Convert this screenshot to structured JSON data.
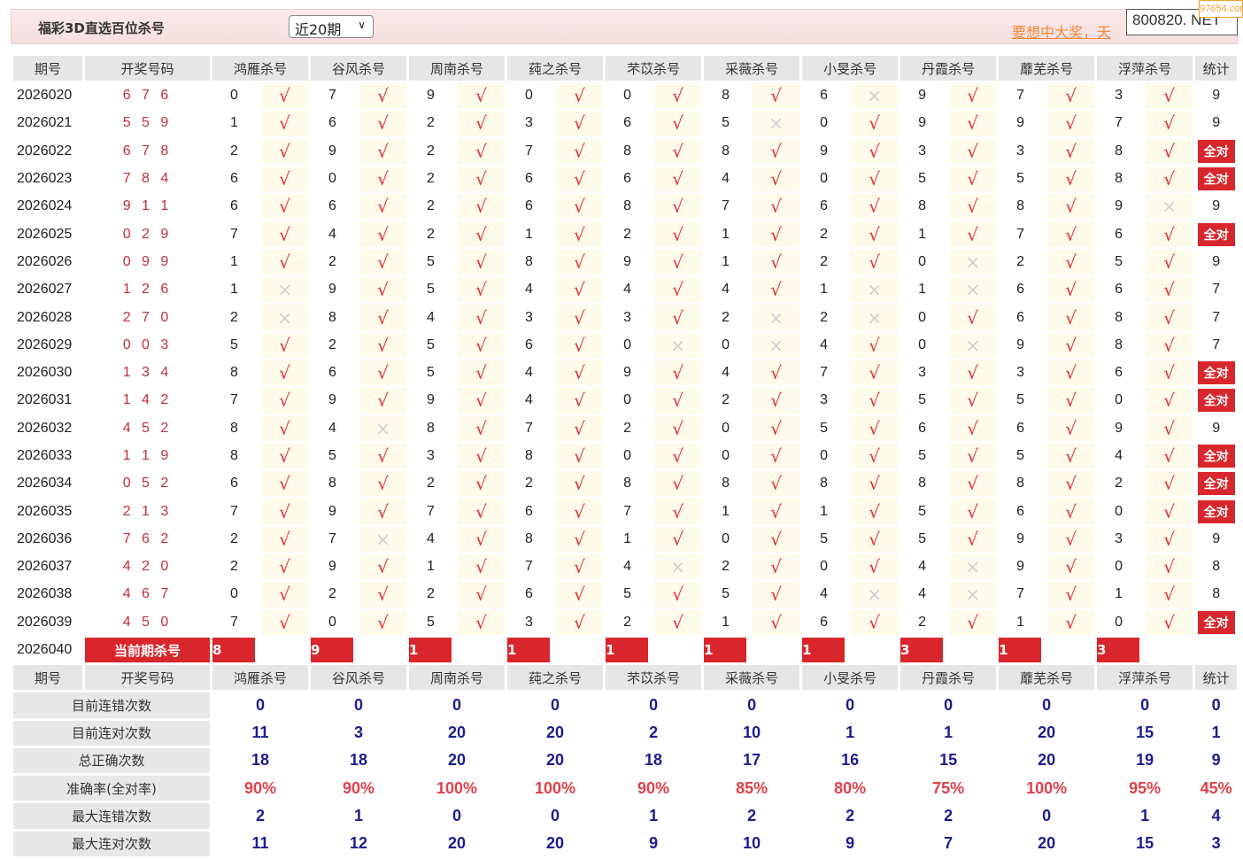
{
  "header": {
    "title": "福彩3D直选百位杀号",
    "range_select": "近20期",
    "promo_link": "要想中大奖，天",
    "site_box": "800820. NET",
    "watermark": "97654.com"
  },
  "colors": {
    "check": "#e0343a",
    "cross": "#cfcfcf",
    "all_correct_bg": "#d8262c",
    "stat_value": "#1c1c8f",
    "accent_red": "#d8262c"
  },
  "columns": {
    "period": "期号",
    "draw": "开奖号码",
    "kills": [
      "鸿雁杀号",
      "谷风杀号",
      "周南杀号",
      "莼之杀号",
      "芣苡杀号",
      "采薇杀号",
      "小旻杀号",
      "丹霞杀号",
      "蘼芜杀号",
      "浮萍杀号"
    ],
    "stat": "统计"
  },
  "marks": {
    "ok": "√",
    "bad": "×"
  },
  "rows": [
    {
      "period": "2026020",
      "draw": "6 7 6",
      "kills": [
        [
          0,
          1
        ],
        [
          7,
          1
        ],
        [
          9,
          1
        ],
        [
          0,
          1
        ],
        [
          0,
          1
        ],
        [
          8,
          1
        ],
        [
          6,
          0
        ],
        [
          9,
          1
        ],
        [
          7,
          1
        ],
        [
          3,
          1
        ]
      ],
      "stat": "9"
    },
    {
      "period": "2026021",
      "draw": "5 5 9",
      "kills": [
        [
          1,
          1
        ],
        [
          6,
          1
        ],
        [
          2,
          1
        ],
        [
          3,
          1
        ],
        [
          6,
          1
        ],
        [
          5,
          0
        ],
        [
          0,
          1
        ],
        [
          9,
          1
        ],
        [
          9,
          1
        ],
        [
          7,
          1
        ]
      ],
      "stat": "9"
    },
    {
      "period": "2026022",
      "draw": "6 7 8",
      "kills": [
        [
          2,
          1
        ],
        [
          9,
          1
        ],
        [
          2,
          1
        ],
        [
          7,
          1
        ],
        [
          8,
          1
        ],
        [
          8,
          1
        ],
        [
          9,
          1
        ],
        [
          3,
          1
        ],
        [
          3,
          1
        ],
        [
          8,
          1
        ]
      ],
      "stat": "全对"
    },
    {
      "period": "2026023",
      "draw": "7 8 4",
      "kills": [
        [
          6,
          1
        ],
        [
          0,
          1
        ],
        [
          2,
          1
        ],
        [
          6,
          1
        ],
        [
          6,
          1
        ],
        [
          4,
          1
        ],
        [
          0,
          1
        ],
        [
          5,
          1
        ],
        [
          5,
          1
        ],
        [
          8,
          1
        ]
      ],
      "stat": "全对"
    },
    {
      "period": "2026024",
      "draw": "9 1 1",
      "kills": [
        [
          6,
          1
        ],
        [
          6,
          1
        ],
        [
          2,
          1
        ],
        [
          6,
          1
        ],
        [
          8,
          1
        ],
        [
          7,
          1
        ],
        [
          6,
          1
        ],
        [
          8,
          1
        ],
        [
          8,
          1
        ],
        [
          9,
          0
        ]
      ],
      "stat": "9"
    },
    {
      "period": "2026025",
      "draw": "0 2 9",
      "kills": [
        [
          7,
          1
        ],
        [
          4,
          1
        ],
        [
          2,
          1
        ],
        [
          1,
          1
        ],
        [
          2,
          1
        ],
        [
          1,
          1
        ],
        [
          2,
          1
        ],
        [
          1,
          1
        ],
        [
          7,
          1
        ],
        [
          6,
          1
        ]
      ],
      "stat": "全对"
    },
    {
      "period": "2026026",
      "draw": "0 9 9",
      "kills": [
        [
          1,
          1
        ],
        [
          2,
          1
        ],
        [
          5,
          1
        ],
        [
          8,
          1
        ],
        [
          9,
          1
        ],
        [
          1,
          1
        ],
        [
          2,
          1
        ],
        [
          0,
          0
        ],
        [
          2,
          1
        ],
        [
          5,
          1
        ]
      ],
      "stat": "9"
    },
    {
      "period": "2026027",
      "draw": "1 2 6",
      "kills": [
        [
          1,
          0
        ],
        [
          9,
          1
        ],
        [
          5,
          1
        ],
        [
          4,
          1
        ],
        [
          4,
          1
        ],
        [
          4,
          1
        ],
        [
          1,
          0
        ],
        [
          1,
          0
        ],
        [
          6,
          1
        ],
        [
          6,
          1
        ]
      ],
      "stat": "7"
    },
    {
      "period": "2026028",
      "draw": "2 7 0",
      "kills": [
        [
          2,
          0
        ],
        [
          8,
          1
        ],
        [
          4,
          1
        ],
        [
          3,
          1
        ],
        [
          3,
          1
        ],
        [
          2,
          0
        ],
        [
          2,
          0
        ],
        [
          0,
          1
        ],
        [
          6,
          1
        ],
        [
          8,
          1
        ]
      ],
      "stat": "7"
    },
    {
      "period": "2026029",
      "draw": "0 0 3",
      "kills": [
        [
          5,
          1
        ],
        [
          2,
          1
        ],
        [
          5,
          1
        ],
        [
          6,
          1
        ],
        [
          0,
          0
        ],
        [
          0,
          0
        ],
        [
          4,
          1
        ],
        [
          0,
          0
        ],
        [
          9,
          1
        ],
        [
          8,
          1
        ]
      ],
      "stat": "7"
    },
    {
      "period": "2026030",
      "draw": "1 3 4",
      "kills": [
        [
          8,
          1
        ],
        [
          6,
          1
        ],
        [
          5,
          1
        ],
        [
          4,
          1
        ],
        [
          9,
          1
        ],
        [
          4,
          1
        ],
        [
          7,
          1
        ],
        [
          3,
          1
        ],
        [
          3,
          1
        ],
        [
          6,
          1
        ]
      ],
      "stat": "全对"
    },
    {
      "period": "2026031",
      "draw": "1 4 2",
      "kills": [
        [
          7,
          1
        ],
        [
          9,
          1
        ],
        [
          9,
          1
        ],
        [
          4,
          1
        ],
        [
          0,
          1
        ],
        [
          2,
          1
        ],
        [
          3,
          1
        ],
        [
          5,
          1
        ],
        [
          5,
          1
        ],
        [
          0,
          1
        ]
      ],
      "stat": "全对"
    },
    {
      "period": "2026032",
      "draw": "4 5 2",
      "kills": [
        [
          8,
          1
        ],
        [
          4,
          0
        ],
        [
          8,
          1
        ],
        [
          7,
          1
        ],
        [
          2,
          1
        ],
        [
          0,
          1
        ],
        [
          5,
          1
        ],
        [
          6,
          1
        ],
        [
          6,
          1
        ],
        [
          9,
          1
        ]
      ],
      "stat": "9"
    },
    {
      "period": "2026033",
      "draw": "1 1 9",
      "kills": [
        [
          8,
          1
        ],
        [
          5,
          1
        ],
        [
          3,
          1
        ],
        [
          8,
          1
        ],
        [
          0,
          1
        ],
        [
          0,
          1
        ],
        [
          0,
          1
        ],
        [
          5,
          1
        ],
        [
          5,
          1
        ],
        [
          4,
          1
        ]
      ],
      "stat": "全对"
    },
    {
      "period": "2026034",
      "draw": "0 5 2",
      "kills": [
        [
          6,
          1
        ],
        [
          8,
          1
        ],
        [
          2,
          1
        ],
        [
          2,
          1
        ],
        [
          8,
          1
        ],
        [
          8,
          1
        ],
        [
          8,
          1
        ],
        [
          8,
          1
        ],
        [
          8,
          1
        ],
        [
          2,
          1
        ]
      ],
      "stat": "全对"
    },
    {
      "period": "2026035",
      "draw": "2 1 3",
      "kills": [
        [
          7,
          1
        ],
        [
          9,
          1
        ],
        [
          7,
          1
        ],
        [
          6,
          1
        ],
        [
          7,
          1
        ],
        [
          1,
          1
        ],
        [
          1,
          1
        ],
        [
          5,
          1
        ],
        [
          6,
          1
        ],
        [
          0,
          1
        ]
      ],
      "stat": "全对"
    },
    {
      "period": "2026036",
      "draw": "7 6 2",
      "kills": [
        [
          2,
          1
        ],
        [
          7,
          0
        ],
        [
          4,
          1
        ],
        [
          8,
          1
        ],
        [
          1,
          1
        ],
        [
          0,
          1
        ],
        [
          5,
          1
        ],
        [
          5,
          1
        ],
        [
          9,
          1
        ],
        [
          3,
          1
        ]
      ],
      "stat": "9"
    },
    {
      "period": "2026037",
      "draw": "4 2 0",
      "kills": [
        [
          2,
          1
        ],
        [
          9,
          1
        ],
        [
          1,
          1
        ],
        [
          7,
          1
        ],
        [
          4,
          0
        ],
        [
          2,
          1
        ],
        [
          0,
          1
        ],
        [
          4,
          0
        ],
        [
          9,
          1
        ],
        [
          0,
          1
        ]
      ],
      "stat": "8"
    },
    {
      "period": "2026038",
      "draw": "4 6 7",
      "kills": [
        [
          0,
          1
        ],
        [
          2,
          1
        ],
        [
          2,
          1
        ],
        [
          6,
          1
        ],
        [
          5,
          1
        ],
        [
          5,
          1
        ],
        [
          4,
          0
        ],
        [
          4,
          0
        ],
        [
          7,
          1
        ],
        [
          1,
          1
        ]
      ],
      "stat": "8"
    },
    {
      "period": "2026039",
      "draw": "4 5 0",
      "kills": [
        [
          7,
          1
        ],
        [
          0,
          1
        ],
        [
          5,
          1
        ],
        [
          3,
          1
        ],
        [
          2,
          1
        ],
        [
          1,
          1
        ],
        [
          6,
          1
        ],
        [
          2,
          1
        ],
        [
          1,
          1
        ],
        [
          0,
          1
        ]
      ],
      "stat": "全对"
    }
  ],
  "current": {
    "period": "2026040",
    "label": "当前期杀号",
    "kills": [
      "8",
      "9",
      "1",
      "1",
      "1",
      "1",
      "1",
      "3",
      "1",
      "3"
    ]
  },
  "stats": [
    {
      "label": "目前连错次数",
      "values": [
        "0",
        "0",
        "0",
        "0",
        "0",
        "0",
        "0",
        "0",
        "0",
        "0",
        "0"
      ]
    },
    {
      "label": "目前连对次数",
      "values": [
        "11",
        "3",
        "20",
        "20",
        "2",
        "10",
        "1",
        "1",
        "20",
        "15",
        "1"
      ]
    },
    {
      "label": "总正确次数",
      "values": [
        "18",
        "18",
        "20",
        "20",
        "18",
        "17",
        "16",
        "15",
        "20",
        "19",
        "9"
      ]
    },
    {
      "label": "准确率(全对率)",
      "values": [
        "90%",
        "90%",
        "100%",
        "100%",
        "90%",
        "85%",
        "80%",
        "75%",
        "100%",
        "95%",
        "45%"
      ],
      "pct": true
    },
    {
      "label": "最大连错次数",
      "values": [
        "2",
        "1",
        "0",
        "0",
        "1",
        "2",
        "2",
        "2",
        "0",
        "1",
        "4"
      ]
    },
    {
      "label": "最大连对次数",
      "values": [
        "11",
        "12",
        "20",
        "20",
        "9",
        "10",
        "9",
        "7",
        "20",
        "15",
        "3"
      ]
    }
  ]
}
